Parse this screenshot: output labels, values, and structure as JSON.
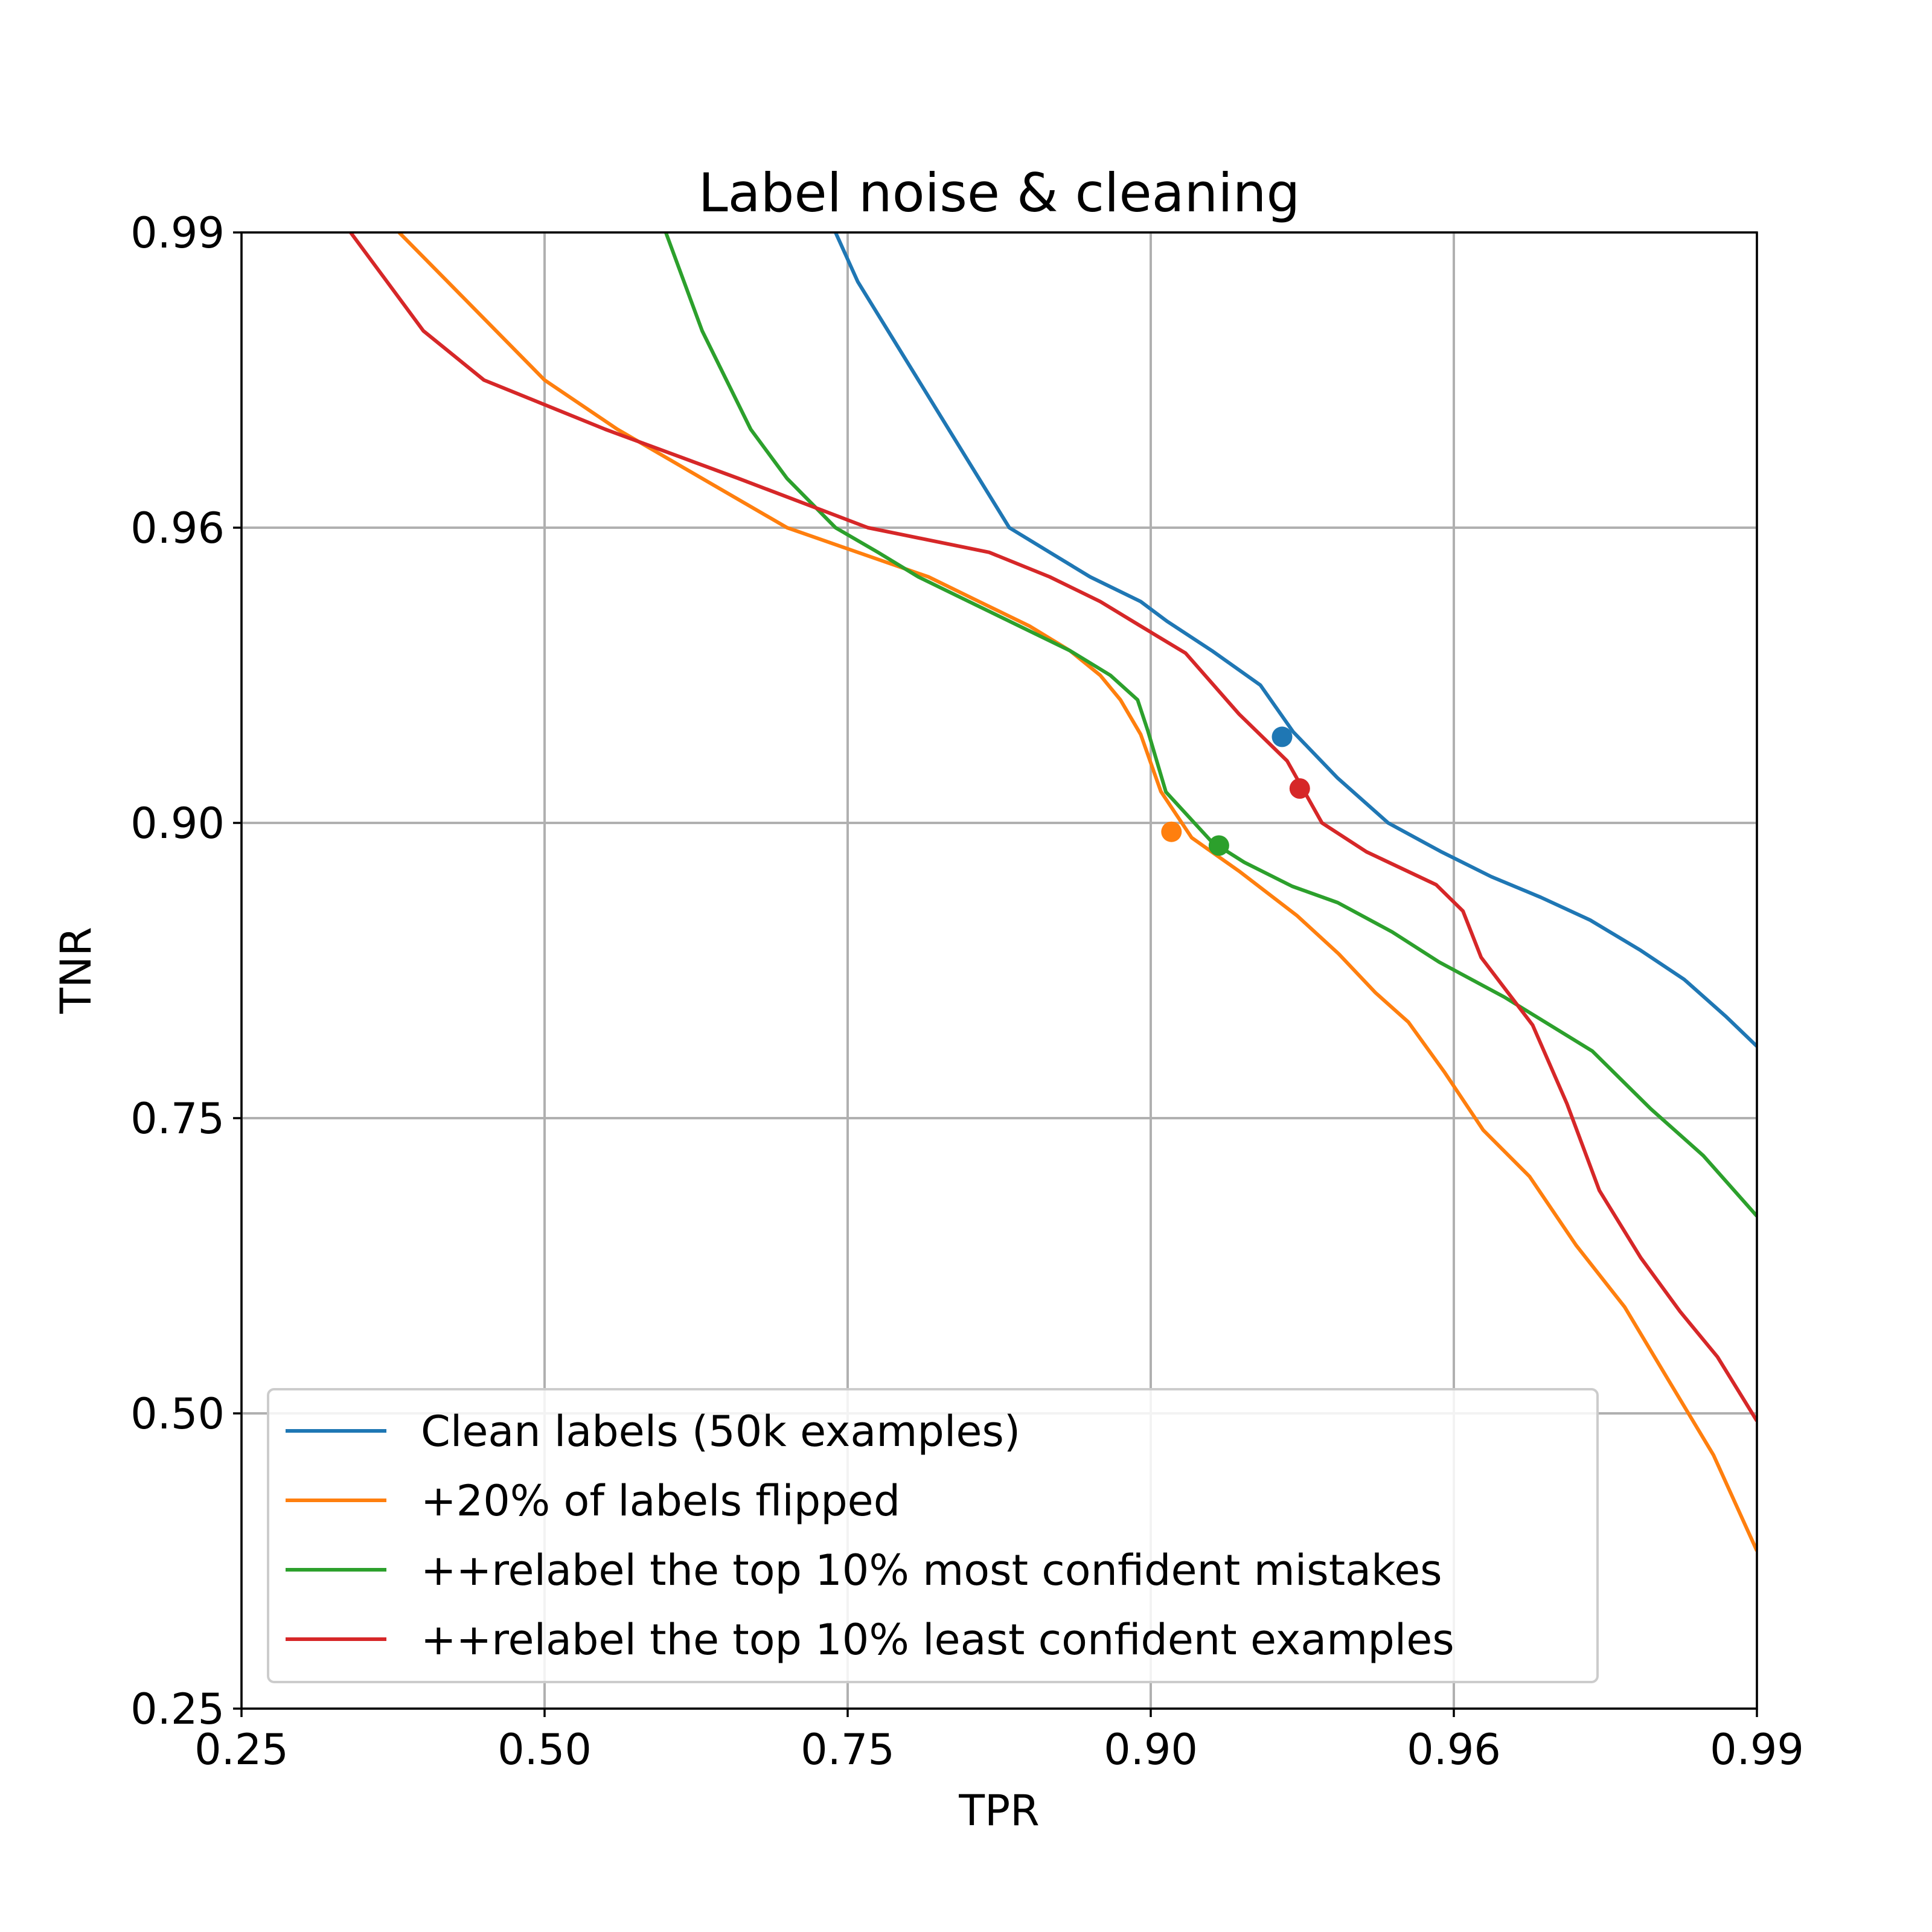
{
  "chart_data": {
    "type": "line",
    "title": "Label noise & cleaning",
    "xlabel": "TPR",
    "ylabel": "TNR",
    "xlim": [
      0.25,
      0.99
    ],
    "ylim": [
      0.25,
      0.99
    ],
    "xticks": [
      "0.25",
      "0.50",
      "0.75",
      "0.90",
      "0.96",
      "0.99"
    ],
    "yticks": [
      "0.25",
      "0.50",
      "0.75",
      "0.90",
      "0.96",
      "0.99"
    ],
    "grid": true,
    "legend_position": "lower-left",
    "series": [
      {
        "name": "Clean labels (50k examples)",
        "color": "#1f77b4",
        "points": [
          [
            0.74,
            0.99
          ],
          [
            0.755,
            0.985
          ],
          [
            0.77,
            0.98
          ],
          [
            0.785,
            0.975
          ],
          [
            0.8,
            0.97
          ],
          [
            0.815,
            0.965
          ],
          [
            0.83,
            0.96
          ],
          [
            0.85,
            0.955
          ],
          [
            0.87,
            0.95
          ],
          [
            0.895,
            0.945
          ],
          [
            0.9032,
            0.941
          ],
          [
            0.9121,
            0.935
          ],
          [
            0.9217,
            0.928
          ],
          [
            0.9282,
            0.9185
          ],
          [
            0.937,
            0.9091
          ],
          [
            0.947,
            0.9
          ],
          [
            0.9574,
            0.8855
          ],
          [
            0.9637,
            0.8727
          ],
          [
            0.9686,
            0.8622
          ],
          [
            0.9735,
            0.8506
          ],
          [
            0.9785,
            0.8352
          ],
          [
            0.9828,
            0.8205
          ],
          [
            0.9869,
            0.8018
          ],
          [
            0.99,
            0.7865
          ]
        ],
        "marker": [
          0.926,
          0.9175
        ]
      },
      {
        "name": "+20% of labels flipped",
        "color": "#ff7f0e",
        "points": [
          [
            0.38,
            0.99
          ],
          [
            0.42,
            0.985
          ],
          [
            0.46,
            0.98
          ],
          [
            0.5,
            0.975
          ],
          [
            0.56,
            0.97
          ],
          [
            0.63,
            0.965
          ],
          [
            0.7,
            0.96
          ],
          [
            0.755,
            0.955
          ],
          [
            0.79,
            0.95
          ],
          [
            0.815,
            0.945
          ],
          [
            0.84,
            0.94
          ],
          [
            0.86,
            0.935
          ],
          [
            0.875,
            0.93
          ],
          [
            0.885,
            0.925
          ],
          [
            0.895,
            0.918
          ],
          [
            0.902,
            0.9064
          ],
          [
            0.9081,
            0.8925
          ],
          [
            0.9177,
            0.8751
          ],
          [
            0.9289,
            0.853
          ],
          [
            0.9372,
            0.8335
          ],
          [
            0.9445,
            0.8137
          ],
          [
            0.951,
            0.7988
          ],
          [
            0.9582,
            0.7732
          ],
          [
            0.9629,
            0.74
          ],
          [
            0.9675,
            0.7005
          ],
          [
            0.9721,
            0.6424
          ],
          [
            0.9769,
            0.5902
          ],
          [
            0.9817,
            0.5217
          ],
          [
            0.9857,
            0.4648
          ],
          [
            0.99,
            0.3836
          ]
        ],
        "marker": [
          0.9041,
          0.8955
        ]
      },
      {
        "name": "++relabel the top 10% most confident mistakes",
        "color": "#2ca02c",
        "points": [
          [
            0.6,
            0.99
          ],
          [
            0.615,
            0.985
          ],
          [
            0.63,
            0.98
          ],
          [
            0.65,
            0.975
          ],
          [
            0.67,
            0.97
          ],
          [
            0.7,
            0.965
          ],
          [
            0.74,
            0.96
          ],
          [
            0.765,
            0.955
          ],
          [
            0.785,
            0.95
          ],
          [
            0.81,
            0.945
          ],
          [
            0.835,
            0.94
          ],
          [
            0.86,
            0.935
          ],
          [
            0.88,
            0.93
          ],
          [
            0.8935,
            0.925
          ],
          [
            0.8985,
            0.9188
          ],
          [
            0.903,
            0.9063
          ],
          [
            0.912,
            0.8906
          ],
          [
            0.9185,
            0.88
          ],
          [
            0.928,
            0.8678
          ],
          [
            0.937,
            0.8595
          ],
          [
            0.9478,
            0.8446
          ],
          [
            0.9571,
            0.8293
          ],
          [
            0.965,
            0.8115
          ],
          [
            0.9737,
            0.7841
          ],
          [
            0.9795,
            0.7547
          ],
          [
            0.9847,
            0.7182
          ],
          [
            0.99,
            0.667
          ]
        ],
        "marker": [
          0.9135,
          0.8885
        ]
      },
      {
        "name": "++relabel the top 10% least confident examples",
        "color": "#d62728",
        "points": [
          [
            0.34,
            0.99
          ],
          [
            0.37,
            0.985
          ],
          [
            0.4,
            0.98
          ],
          [
            0.45,
            0.975
          ],
          [
            0.55,
            0.97
          ],
          [
            0.66,
            0.965
          ],
          [
            0.76,
            0.96
          ],
          [
            0.82,
            0.955
          ],
          [
            0.85,
            0.95
          ],
          [
            0.875,
            0.945
          ],
          [
            0.895,
            0.94
          ],
          [
            0.9069,
            0.9345
          ],
          [
            0.9175,
            0.9221
          ],
          [
            0.927,
            0.9126
          ],
          [
            0.9339,
            0.9
          ],
          [
            0.9427,
            0.8853
          ],
          [
            0.9565,
            0.8686
          ],
          [
            0.9609,
            0.8552
          ],
          [
            0.9627,
            0.8317
          ],
          [
            0.9678,
            0.7973
          ],
          [
            0.9712,
            0.7573
          ],
          [
            0.9744,
            0.6888
          ],
          [
            0.9785,
            0.6318
          ],
          [
            0.9824,
            0.5862
          ],
          [
            0.9861,
            0.5478
          ],
          [
            0.99,
            0.4936
          ]
        ],
        "marker": [
          0.9295,
          0.907
        ]
      }
    ]
  }
}
